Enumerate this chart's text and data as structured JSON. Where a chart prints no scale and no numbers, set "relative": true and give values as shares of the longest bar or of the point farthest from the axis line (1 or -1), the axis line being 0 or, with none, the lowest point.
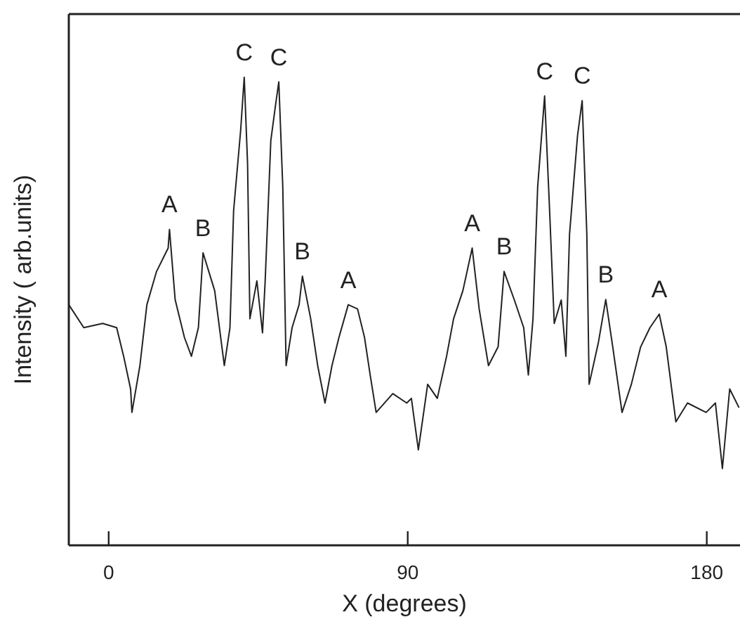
{
  "chart_data": {
    "type": "line",
    "relative": true,
    "xlabel": "X (degrees)",
    "ylabel": "Intensity ( arb.units)",
    "xlim": [
      -12,
      190
    ],
    "xticks": [
      0,
      90,
      180
    ],
    "grid": false,
    "marker": "none",
    "line_style": "solid",
    "series": [
      {
        "color": "#222222",
        "x": [
          -12,
          -7.5,
          -1.8,
          2.4,
          4.5,
          6.6,
          7,
          9.4,
          11.5,
          14.4,
          17.9,
          18.3,
          20,
          22.8,
          24.9,
          27,
          28.4,
          31.9,
          34.8,
          36.5,
          37.6,
          39.7,
          40.8,
          41.8,
          42.5,
          44.6,
          46.3,
          47.1,
          48.8,
          50.3,
          51.2,
          52.4,
          53.4,
          55.2,
          57.3,
          58.3,
          60.8,
          62.9,
          65.1,
          67.2,
          69.3,
          72.1,
          74.9,
          77,
          78.7,
          80.5,
          85.5,
          89.7,
          91.1,
          93.2,
          96,
          98.9,
          101.7,
          103.8,
          106.6,
          109.4,
          111.5,
          114.3,
          117.2,
          119,
          122.1,
          124.9,
          126.3,
          127.7,
          129.1,
          131.2,
          132.7,
          134.1,
          136.2,
          137.6,
          138.7,
          141.1,
          142.5,
          143.9,
          144.6,
          147.4,
          149.6,
          151.7,
          154.5,
          157.3,
          160.1,
          162.9,
          165.7,
          167.8,
          170.7,
          174.2,
          179.8,
          182.6,
          184.7,
          186.9,
          189.7
        ],
        "values": [
          0.514,
          0.465,
          0.474,
          0.465,
          0.404,
          0.334,
          0.284,
          0.384,
          0.514,
          0.585,
          0.635,
          0.675,
          0.525,
          0.444,
          0.404,
          0.465,
          0.625,
          0.544,
          0.384,
          0.465,
          0.715,
          0.885,
          1.0,
          0.815,
          0.484,
          0.565,
          0.454,
          0.565,
          0.865,
          0.945,
          0.99,
          0.765,
          0.384,
          0.465,
          0.514,
          0.575,
          0.484,
          0.384,
          0.304,
          0.384,
          0.444,
          0.514,
          0.505,
          0.444,
          0.364,
          0.284,
          0.324,
          0.304,
          0.314,
          0.204,
          0.344,
          0.314,
          0.404,
          0.484,
          0.544,
          0.635,
          0.505,
          0.384,
          0.424,
          0.585,
          0.524,
          0.465,
          0.364,
          0.484,
          0.765,
          0.96,
          0.715,
          0.474,
          0.524,
          0.404,
          0.665,
          0.875,
          0.95,
          0.665,
          0.344,
          0.434,
          0.525,
          0.424,
          0.284,
          0.344,
          0.424,
          0.465,
          0.494,
          0.424,
          0.264,
          0.304,
          0.284,
          0.304,
          0.164,
          0.334,
          0.294
        ]
      }
    ],
    "annotations": [
      {
        "text": "A",
        "x": 18.3,
        "y": 0.675
      },
      {
        "text": "B",
        "x": 28.4,
        "y": 0.625
      },
      {
        "text": "C",
        "x": 40.8,
        "y": 1.0
      },
      {
        "text": "C",
        "x": 51.2,
        "y": 0.99
      },
      {
        "text": "B",
        "x": 58.3,
        "y": 0.575
      },
      {
        "text": "A",
        "x": 72.1,
        "y": 0.514
      },
      {
        "text": "A",
        "x": 109.4,
        "y": 0.635
      },
      {
        "text": "B",
        "x": 119,
        "y": 0.585
      },
      {
        "text": "C",
        "x": 131.2,
        "y": 0.96
      },
      {
        "text": "C",
        "x": 142.5,
        "y": 0.95
      },
      {
        "text": "B",
        "x": 149.6,
        "y": 0.525
      },
      {
        "text": "A",
        "x": 165.7,
        "y": 0.494
      }
    ]
  }
}
